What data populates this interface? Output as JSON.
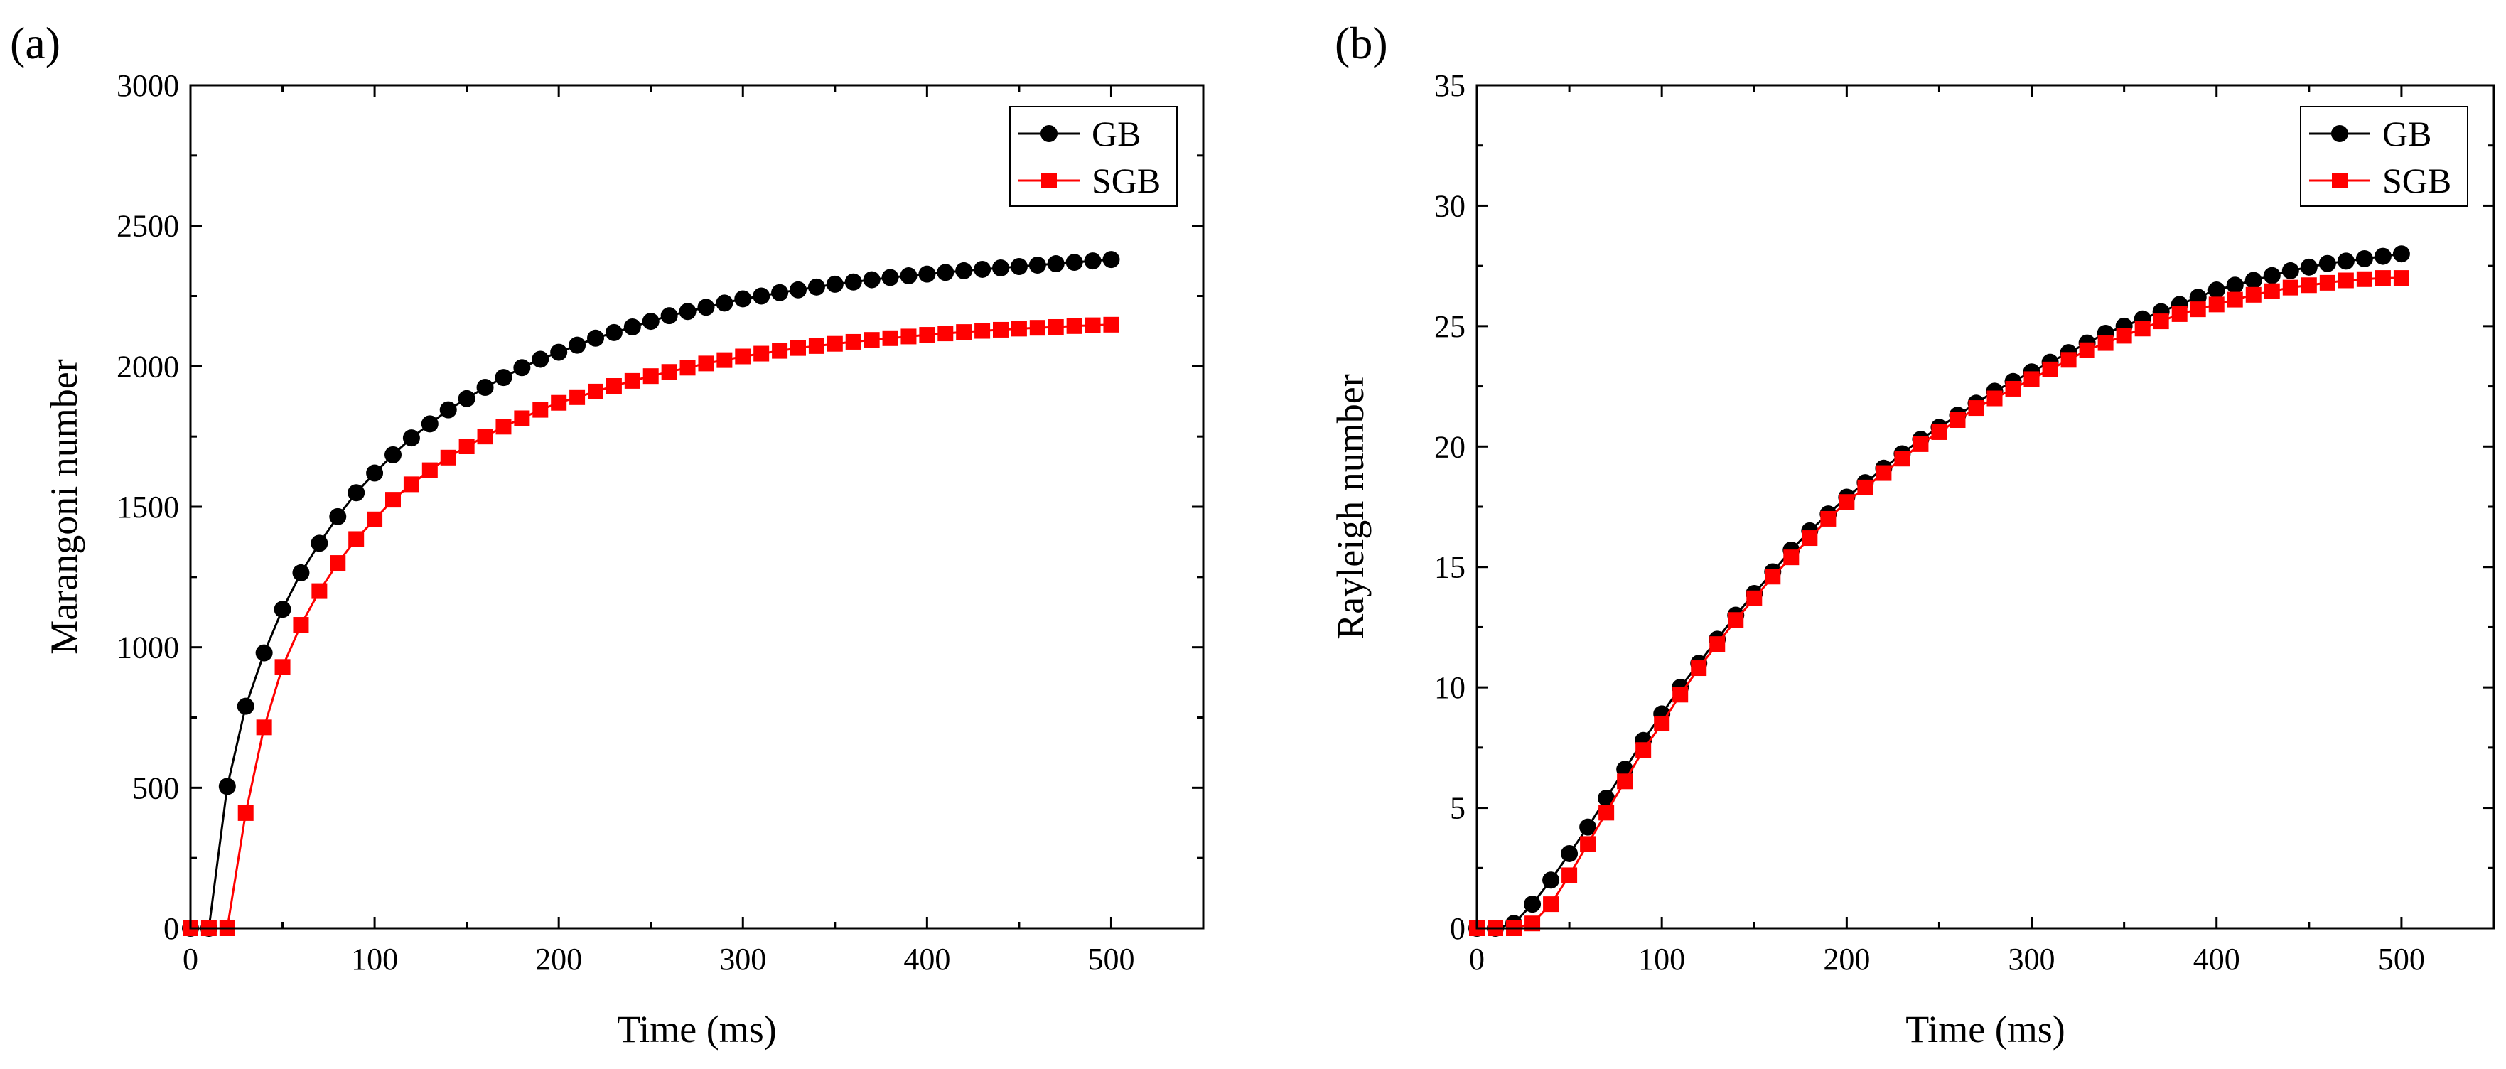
{
  "colors": {
    "GB": "#000000",
    "SGB": "#ff0000"
  },
  "chart_data": [
    {
      "panel_label": "(a)",
      "type": "line",
      "xlabel": "Time (ms)",
      "ylabel": "Marangoni number",
      "xlim": [
        0,
        550
      ],
      "ylim": [
        0,
        3000
      ],
      "xticks": [
        0,
        100,
        200,
        300,
        400,
        500
      ],
      "yticks": [
        0,
        500,
        1000,
        1500,
        2000,
        2500,
        3000
      ],
      "legend_position": "top-right",
      "grid": false,
      "x": [
        0,
        10,
        20,
        30,
        40,
        50,
        60,
        70,
        80,
        90,
        100,
        110,
        120,
        130,
        140,
        150,
        160,
        170,
        180,
        190,
        200,
        210,
        220,
        230,
        240,
        250,
        260,
        270,
        280,
        290,
        300,
        310,
        320,
        330,
        340,
        350,
        360,
        370,
        380,
        390,
        400,
        410,
        420,
        430,
        440,
        450,
        460,
        470,
        480,
        490,
        500
      ],
      "series": [
        {
          "name": "GB",
          "marker": "circle",
          "color": "#000000",
          "values": [
            0,
            0,
            505,
            790,
            980,
            1135,
            1265,
            1370,
            1465,
            1550,
            1620,
            1685,
            1745,
            1795,
            1845,
            1885,
            1925,
            1960,
            1995,
            2025,
            2050,
            2075,
            2100,
            2120,
            2140,
            2160,
            2180,
            2195,
            2210,
            2225,
            2240,
            2250,
            2262,
            2272,
            2282,
            2292,
            2300,
            2308,
            2316,
            2322,
            2328,
            2334,
            2340,
            2345,
            2350,
            2355,
            2360,
            2365,
            2370,
            2375,
            2380
          ]
        },
        {
          "name": "SGB",
          "marker": "square",
          "color": "#ff0000",
          "values": [
            0,
            0,
            0,
            410,
            715,
            930,
            1080,
            1200,
            1300,
            1385,
            1455,
            1525,
            1580,
            1630,
            1675,
            1715,
            1750,
            1785,
            1815,
            1845,
            1870,
            1890,
            1910,
            1930,
            1948,
            1965,
            1980,
            1995,
            2010,
            2022,
            2035,
            2045,
            2055,
            2065,
            2072,
            2080,
            2087,
            2094,
            2100,
            2106,
            2112,
            2117,
            2122,
            2126,
            2130,
            2134,
            2137,
            2140,
            2143,
            2146,
            2148
          ]
        }
      ]
    },
    {
      "panel_label": "(b)",
      "type": "line",
      "xlabel": "Time (ms)",
      "ylabel": "Rayleigh number",
      "xlim": [
        0,
        550
      ],
      "ylim": [
        0,
        35
      ],
      "xticks": [
        0,
        100,
        200,
        300,
        400,
        500
      ],
      "yticks": [
        0,
        5,
        10,
        15,
        20,
        25,
        30,
        35
      ],
      "legend_position": "top-right",
      "grid": false,
      "x": [
        0,
        10,
        20,
        30,
        40,
        50,
        60,
        70,
        80,
        90,
        100,
        110,
        120,
        130,
        140,
        150,
        160,
        170,
        180,
        190,
        200,
        210,
        220,
        230,
        240,
        250,
        260,
        270,
        280,
        290,
        300,
        310,
        320,
        330,
        340,
        350,
        360,
        370,
        380,
        390,
        400,
        410,
        420,
        430,
        440,
        450,
        460,
        470,
        480,
        490,
        500
      ],
      "series": [
        {
          "name": "GB",
          "marker": "circle",
          "color": "#000000",
          "values": [
            0,
            0,
            0.2,
            1.0,
            2.0,
            3.1,
            4.2,
            5.4,
            6.6,
            7.8,
            8.9,
            10.0,
            11.0,
            12.0,
            13.0,
            13.9,
            14.8,
            15.7,
            16.5,
            17.2,
            17.9,
            18.5,
            19.1,
            19.7,
            20.3,
            20.8,
            21.3,
            21.8,
            22.3,
            22.7,
            23.1,
            23.5,
            23.9,
            24.3,
            24.7,
            25.0,
            25.3,
            25.6,
            25.9,
            26.2,
            26.5,
            26.7,
            26.9,
            27.1,
            27.3,
            27.45,
            27.6,
            27.7,
            27.8,
            27.9,
            28.0
          ]
        },
        {
          "name": "SGB",
          "marker": "square",
          "color": "#ff0000",
          "values": [
            0,
            0,
            0,
            0.2,
            1.0,
            2.2,
            3.5,
            4.8,
            6.1,
            7.4,
            8.5,
            9.7,
            10.8,
            11.8,
            12.8,
            13.7,
            14.6,
            15.4,
            16.2,
            17.0,
            17.7,
            18.3,
            18.9,
            19.5,
            20.1,
            20.6,
            21.1,
            21.6,
            22.0,
            22.4,
            22.8,
            23.2,
            23.6,
            24.0,
            24.3,
            24.6,
            24.9,
            25.2,
            25.5,
            25.7,
            25.9,
            26.1,
            26.3,
            26.45,
            26.6,
            26.7,
            26.8,
            26.9,
            26.95,
            27.0,
            27.0
          ]
        }
      ]
    }
  ]
}
